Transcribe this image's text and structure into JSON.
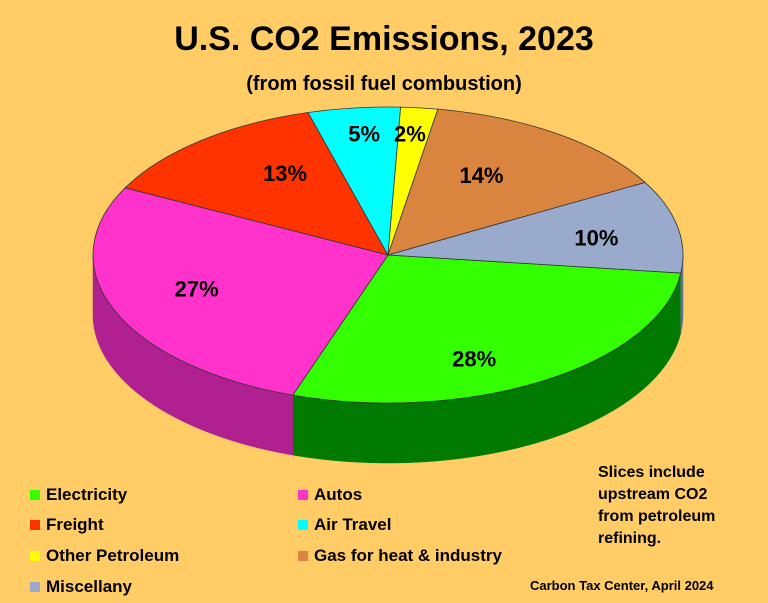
{
  "chart_data": {
    "type": "pie",
    "title": "U.S. CO2 Emissions, 2023",
    "subtitle": "(from fossil fuel combustion)",
    "slices": [
      {
        "label": "Electricity",
        "value": 28,
        "display": "28%",
        "color": "#33FF00",
        "side": "#007A00"
      },
      {
        "label": "Autos",
        "value": 27,
        "display": "27%",
        "color": "#FF33CC",
        "side": "#B02090"
      },
      {
        "label": "Freight",
        "value": 13,
        "display": "13%",
        "color": "#FF3300",
        "side": "#A02000"
      },
      {
        "label": "Air Travel",
        "value": 5,
        "display": "5%",
        "color": "#00FFFF",
        "side": "#009999"
      },
      {
        "label": "Other Petroleum",
        "value": 2,
        "display": "2%",
        "color": "#FFFF00",
        "side": "#A0A000"
      },
      {
        "label": "Gas for heat & industry",
        "value": 14,
        "display": "14%",
        "color": "#D9843F",
        "side": "#8A5020"
      },
      {
        "label": "Miscellany",
        "value": 10,
        "display": "10%",
        "color": "#99AACC",
        "side": "#607090"
      }
    ],
    "legend_position": "bottom"
  },
  "note": "Slices include\nupstream CO2\nfrom petroleum\nrefining.",
  "source": "Carbon Tax Center, April 2024"
}
